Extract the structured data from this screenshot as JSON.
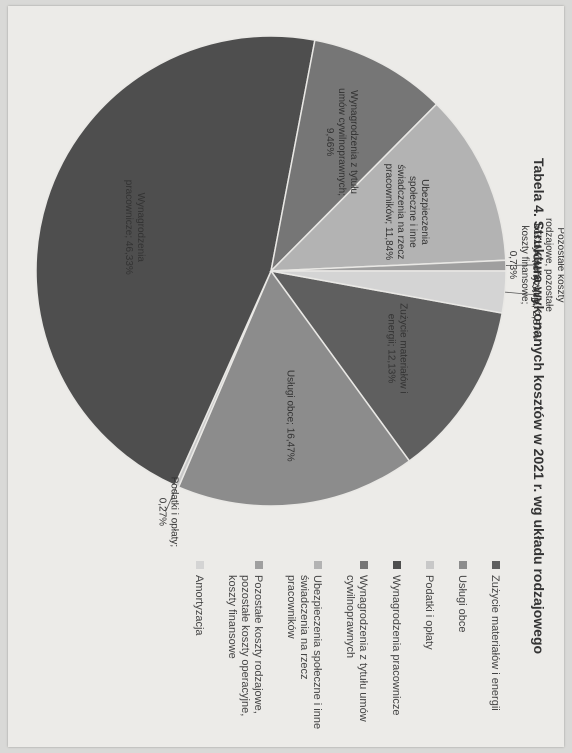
{
  "chart_data": {
    "type": "pie",
    "title": "Tabela 4. Struktura wykonanych kosztów w 2021 r. wg układu rodzajowego",
    "legend_position": "right",
    "slices": [
      {
        "name": "Zużycie materiałów i energii",
        "value": 12.13,
        "label": "Zużycie materiałów i energii; 12,13%",
        "color": "#5f5f5f"
      },
      {
        "name": "Usługi obce",
        "value": 16.47,
        "label": "Usługi obce; 16,47%",
        "color": "#8c8c8c"
      },
      {
        "name": "Podatki i opłaty",
        "value": 0.27,
        "label": "Podatki i opłaty; 0,27%",
        "color": "#c8c8c8"
      },
      {
        "name": "Wynagrodzenia pracownicze",
        "value": 46.33,
        "label": "Wynagrodzenia pracownicze; 46,33%",
        "color": "#4e4e4e"
      },
      {
        "name": "Wynagrodzenia z tytułu umów cywilnoprawnych",
        "value": 9.46,
        "label": "Wynagrodzenia z tytułu umów cywilnoprawnych; 9,46%",
        "color": "#767676"
      },
      {
        "name": "Ubezpieczenia społeczne i inne świadczenia na rzecz pracowników",
        "value": 11.84,
        "label": "Ubezpieczenia społeczne i inne świadczenia na rzecz pracowników; 11,84%",
        "color": "#b3b3b3"
      },
      {
        "name": "Pozostałe koszty rodzajowe, pozostałe koszty operacyjne, koszty finansowe",
        "value": 0.73,
        "label": "Pozostałe koszty rodzajowe, pozostałe koszty operacyjne, koszty finansowe; 0,73%",
        "color": "#9f9f9f"
      },
      {
        "name": "Amortyzacja",
        "value": 2.87,
        "label": "Amortyzacja; 2,87%",
        "color": "#d4d4d4"
      }
    ]
  }
}
